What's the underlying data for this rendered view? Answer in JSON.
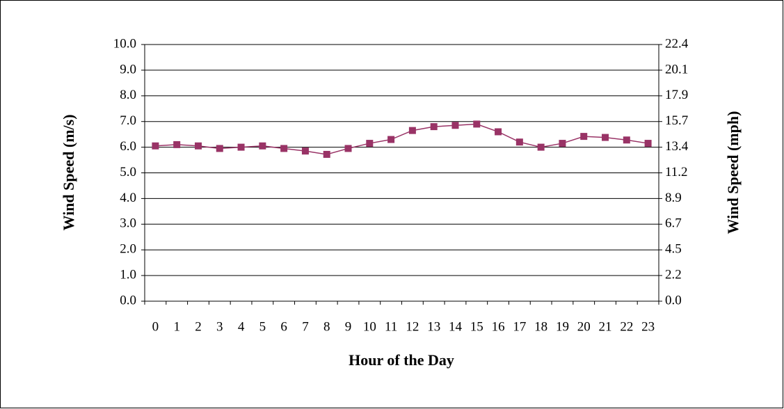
{
  "chart_data": {
    "type": "line",
    "x_label": "Hour of the Day",
    "y_label": "Wind Speed (m/s)",
    "y2_label": "Wind Speed (mph)",
    "categories": [
      "0",
      "1",
      "2",
      "3",
      "4",
      "5",
      "6",
      "7",
      "8",
      "9",
      "10",
      "11",
      "12",
      "13",
      "14",
      "15",
      "16",
      "17",
      "18",
      "19",
      "20",
      "21",
      "22",
      "23"
    ],
    "values": [
      6.05,
      6.1,
      6.05,
      5.95,
      6.0,
      6.05,
      5.95,
      5.85,
      5.72,
      5.95,
      6.15,
      6.3,
      6.65,
      6.8,
      6.85,
      6.9,
      6.6,
      6.2,
      6.0,
      6.15,
      6.42,
      6.38,
      6.28,
      6.15
    ],
    "color": "#993366",
    "ylim": [
      0,
      10
    ],
    "yticks": [
      {
        "value": 0,
        "label": "0.0"
      },
      {
        "value": 1,
        "label": "1.0"
      },
      {
        "value": 2,
        "label": "2.0"
      },
      {
        "value": 3,
        "label": "3.0"
      },
      {
        "value": 4,
        "label": "4.0"
      },
      {
        "value": 5,
        "label": "5.0"
      },
      {
        "value": 6,
        "label": "6.0"
      },
      {
        "value": 7,
        "label": "7.0"
      },
      {
        "value": 8,
        "label": "8.0"
      },
      {
        "value": 9,
        "label": "9.0"
      },
      {
        "value": 10,
        "label": "10.0"
      }
    ],
    "y2lim": [
      0,
      22.37
    ],
    "y2ticks": [
      {
        "value": 0,
        "label": "0.0"
      },
      {
        "value": 2.237,
        "label": "2.2"
      },
      {
        "value": 4.474,
        "label": "4.5"
      },
      {
        "value": 6.711,
        "label": "6.7"
      },
      {
        "value": 8.948,
        "label": "8.9"
      },
      {
        "value": 11.185,
        "label": "11.2"
      },
      {
        "value": 13.422,
        "label": "13.4"
      },
      {
        "value": 15.659,
        "label": "15.7"
      },
      {
        "value": 17.896,
        "label": "17.9"
      },
      {
        "value": 20.133,
        "label": "20.1"
      },
      {
        "value": 22.37,
        "label": "22.4"
      }
    ],
    "grid": true
  }
}
